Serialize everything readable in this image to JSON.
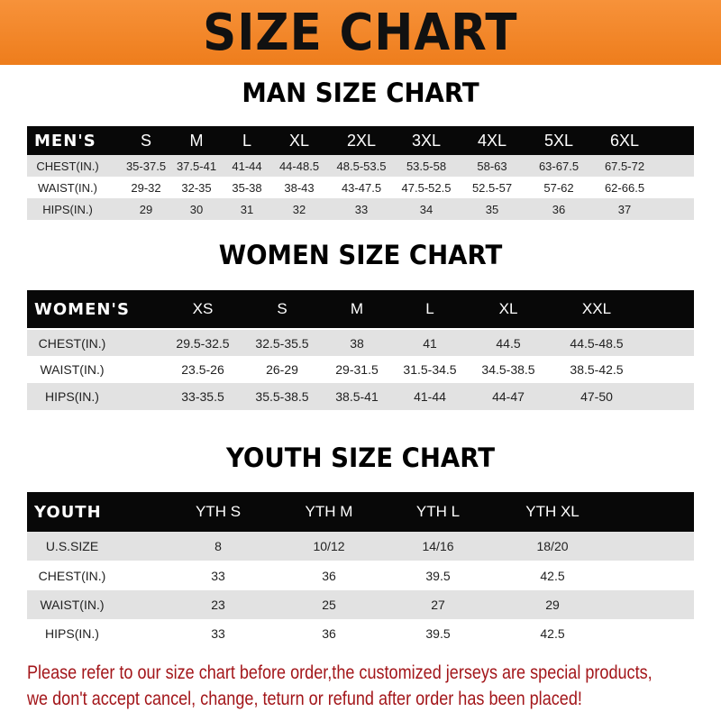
{
  "banner_title": "SIZE CHART",
  "colors": {
    "banner": "#f08424",
    "header_row": "#080808",
    "stripe": "#e2e2e2",
    "note": "#a3161a"
  },
  "men": {
    "title": "MAN SIZE CHART",
    "header": [
      "MEN'S",
      "S",
      "M",
      "L",
      "XL",
      "2XL",
      "3XL",
      "4XL",
      "5XL",
      "6XL"
    ],
    "rows": [
      [
        "CHEST(IN.)",
        "35-37.5",
        "37.5-41",
        "41-44",
        "44-48.5",
        "48.5-53.5",
        "53.5-58",
        "58-63",
        "63-67.5",
        "67.5-72"
      ],
      [
        "WAIST(IN.)",
        "29-32",
        "32-35",
        "35-38",
        "38-43",
        "43-47.5",
        "47.5-52.5",
        "52.5-57",
        "57-62",
        "62-66.5"
      ],
      [
        "HIPS(IN.)",
        "29",
        "30",
        "31",
        "32",
        "33",
        "34",
        "35",
        "36",
        "37"
      ]
    ]
  },
  "women": {
    "title": "WOMEN SIZE CHART",
    "header": [
      "WOMEN'S",
      "XS",
      "S",
      "M",
      "L",
      "XL",
      "XXL"
    ],
    "rows": [
      [
        "CHEST(IN.)",
        "29.5-32.5",
        "32.5-35.5",
        "38",
        "41",
        "44.5",
        "44.5-48.5"
      ],
      [
        "WAIST(IN.)",
        "23.5-26",
        "26-29",
        "29-31.5",
        "31.5-34.5",
        "34.5-38.5",
        "38.5-42.5"
      ],
      [
        "HIPS(IN.)",
        "33-35.5",
        "35.5-38.5",
        "38.5-41",
        "41-44",
        "44-47",
        "47-50"
      ]
    ]
  },
  "youth": {
    "title": "YOUTH SIZE CHART",
    "header": [
      "YOUTH",
      "YTH S",
      "YTH M",
      "YTH L",
      "YTH XL"
    ],
    "rows": [
      [
        "U.S.SIZE",
        "8",
        "10/12",
        "14/16",
        "18/20"
      ],
      [
        "CHEST(IN.)",
        "33",
        "36",
        "39.5",
        "42.5"
      ],
      [
        "WAIST(IN.)",
        "23",
        "25",
        "27",
        "29"
      ],
      [
        "HIPS(IN.)",
        "33",
        "36",
        "39.5",
        "42.5"
      ]
    ]
  },
  "note": {
    "line1": "Please refer to our size chart before order,the customized jerseys are special products,",
    "line2": "we don't accept cancel, change, teturn or refund after order has been placed!"
  }
}
